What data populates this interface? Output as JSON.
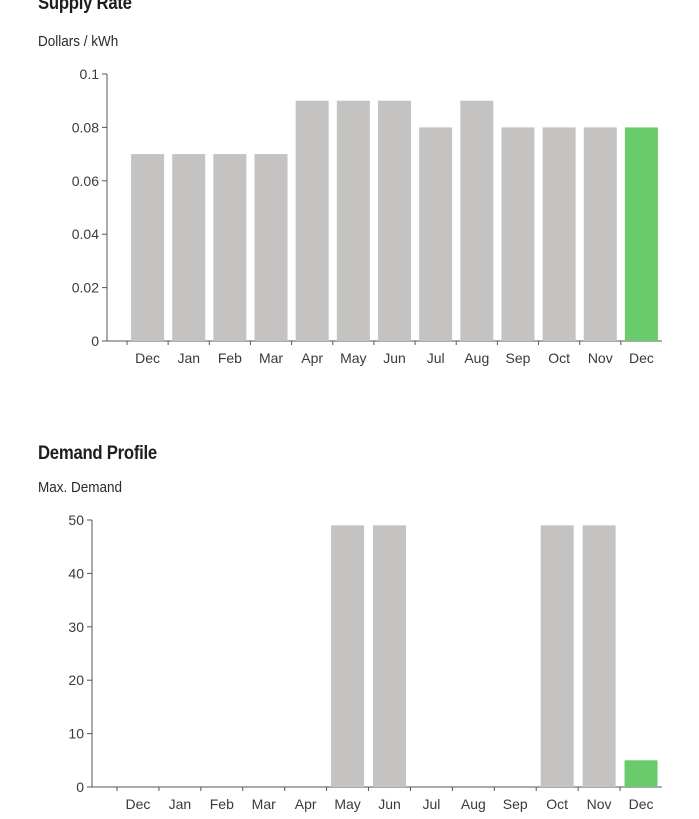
{
  "chart_data": [
    {
      "type": "bar",
      "title": "Supply Rate",
      "ylabel": "Dollars / kWh",
      "xlabel": "",
      "categories": [
        "Dec",
        "Jan",
        "Feb",
        "Mar",
        "Apr",
        "May",
        "Jun",
        "Jul",
        "Aug",
        "Sep",
        "Oct",
        "Nov",
        "Dec"
      ],
      "values": [
        0.07,
        0.07,
        0.07,
        0.07,
        0.09,
        0.09,
        0.09,
        0.08,
        0.09,
        0.08,
        0.08,
        0.08,
        0.08
      ],
      "ylim": [
        0,
        0.1
      ],
      "yticks": [
        "0",
        "0.02",
        "0.04",
        "0.06",
        "0.08",
        "0.1"
      ],
      "grid": false,
      "bar_color": "#c4c3c1",
      "highlight_color": "#6acb6c",
      "highlight_index": 12
    },
    {
      "type": "bar",
      "title": "Demand Profile",
      "ylabel": "Max. Demand",
      "xlabel": "",
      "categories": [
        "Dec",
        "Jan",
        "Feb",
        "Mar",
        "Apr",
        "May",
        "Jun",
        "Jul",
        "Aug",
        "Sep",
        "Oct",
        "Nov",
        "Dec"
      ],
      "values": [
        0,
        0,
        0,
        0,
        0,
        49,
        49,
        0,
        0,
        0,
        49,
        49,
        5
      ],
      "ylim": [
        0,
        50
      ],
      "yticks": [
        "0",
        "10",
        "20",
        "30",
        "40",
        "50"
      ],
      "grid": false,
      "bar_color": "#c4c3c1",
      "highlight_color": "#6acb6c",
      "highlight_index": 12
    }
  ]
}
